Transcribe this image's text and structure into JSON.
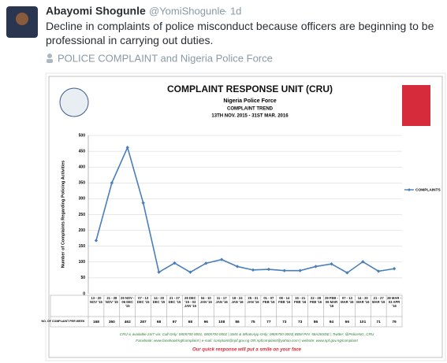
{
  "tweet": {
    "name": "Abayomi Shogunle",
    "handle": "@YomiShogunle",
    "time": "· 1d",
    "text": "Decline in complaints of police misconduct because officers are beginning to be professional in carrying out duties.",
    "tagged": "POLICE COMPLAINT and Nigeria Police Force"
  },
  "chart_data": {
    "type": "line",
    "title": "COMPLAINT RESPONSE UNIT (CRU)",
    "subtitle": [
      "Nigeria Police Force",
      "COMPLAINT TREND",
      "13TH NOV. 2015 - 31ST MAR. 2016"
    ],
    "y_label": "Number of Complaints Regarding Policing Activities",
    "table_label": "NO. OF COMPLAINT PER WEEK",
    "categories": [
      "13 - 20 NOV '15",
      "21 - 28 NOV '15",
      "29 NOV - 06 DEC '15",
      "07 - 13 DEC '15",
      "14 - 20 DEC '15",
      "21 - 27 DEC '15",
      "28 DEC '15 - 03 JAN '16",
      "04 - 10 JAN '16",
      "11 - 17 JAN '16",
      "18 - 24 JAN '16",
      "25 - 31 JAN '16",
      "01 - 07 FEB '16",
      "08 - 14 FEB '16",
      "15 - 21 FEB '16",
      "22 - 28 FEB '16",
      "29 FEB - 06 MAR '16",
      "07 - 13 MAR '16",
      "14 - 20 MAR '16",
      "21 - 27 MAR '16",
      "28 MAR - 03 APR '16"
    ],
    "series": [
      {
        "name": "COMPLAINTS",
        "color": "#4a7ebb",
        "values": [
          168,
          350,
          462,
          287,
          68,
          97,
          68,
          96,
          108,
          86,
          75,
          77,
          73,
          73,
          86,
          94,
          66,
          101,
          71,
          79
        ]
      }
    ],
    "ylim": [
      0,
      500
    ],
    "yticks": [
      0,
      50,
      100,
      150,
      200,
      250,
      300,
      350,
      400,
      450,
      500
    ],
    "grid": true,
    "legend": "right",
    "footer": [
      "CRU is available 24/7 via: Call Only: 0805700 0001, 0805700 0002 | SMS & WhatsApp Only: 0805700 0003| BBM PIN: 58A28SDE | Twitter: @PoliceNG_CRU",
      "Facebook: www.facebook/ngfcomplaint | e-mail: complaint@npf.gov.ng OR npfcomplaint@yahoo.com | website: www.npf.gov.ng/complaint",
      "Our quick response will put a smile on your face"
    ]
  }
}
